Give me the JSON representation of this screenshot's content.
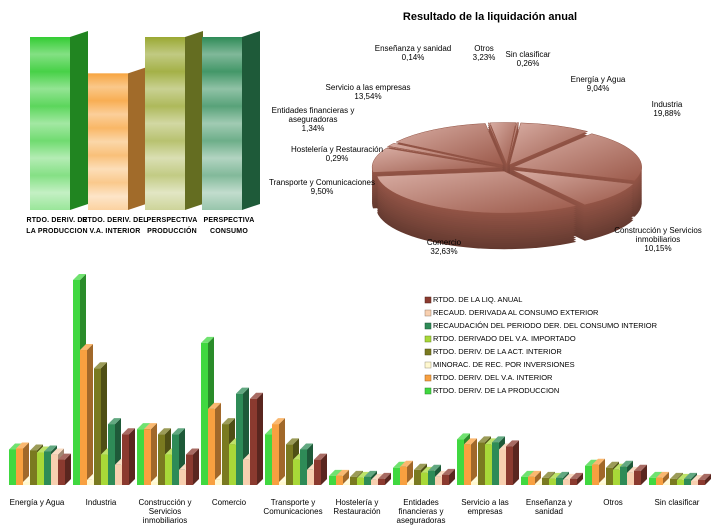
{
  "chart_data": [
    {
      "type": "bar",
      "categories": [
        "RTDO. DERIV. DE LA PRODUCCION",
        "RTDO. DERIV. DEL V.A. INTERIOR",
        "PERSPECTIVA PRODUCCIÓN",
        "PERSPECTIVA CONSUMO"
      ],
      "values": [
        100,
        79,
        100,
        100
      ],
      "colors": [
        "#33cc33",
        "#f7a540",
        "#9aa832",
        "#2e8b57"
      ]
    },
    {
      "type": "pie",
      "title": "Resultado de la liquidación anual",
      "categories": [
        "Energía y Agua",
        "Industria",
        "Construcción y Servicios inmobiliarios",
        "Comercio",
        "Transporte y Comunicaciones",
        "Hostelería y Restauración",
        "Entidades financieras y aseguradoras",
        "Servicio a las empresas",
        "Enseñanza y sanidad",
        "Otros",
        "Sin clasificar"
      ],
      "values": [
        9.04,
        19.88,
        10.15,
        32.63,
        9.5,
        0.29,
        1.34,
        13.54,
        0.14,
        3.23,
        0.26
      ],
      "value_labels": [
        "9,04%",
        "19,88%",
        "10,15%",
        "32,63%",
        "9,50%",
        "0,29%",
        "1,34%",
        "13,54%",
        "0,14%",
        "3,23%",
        "0,26%"
      ],
      "color": "#b86a58"
    },
    {
      "type": "bar",
      "categories": [
        "Energía y Agua",
        "Industria",
        "Construcción y Servicios inmobiliarios",
        "Comercio",
        "Transporte y Comunicaciones",
        "Hostelería y Restauración",
        "Entidades financieras y aseguradoras",
        "Servicio a las empresas",
        "Enseñanza y sanidad",
        "Otros",
        "Sin clasificar"
      ],
      "series": [
        {
          "name": "RTDO. DE LA LIQ. ANUAL",
          "color": "#8b3a2f",
          "values": [
            25,
            50,
            30,
            85,
            25,
            6,
            10,
            38,
            6,
            14,
            5
          ]
        },
        {
          "name": "RECAUD. DERIVADA AL CONSUMO EXTERIOR",
          "color": "#f8d0b0",
          "values": [
            30,
            20,
            15,
            25,
            15,
            5,
            8,
            35,
            5,
            12,
            4
          ]
        },
        {
          "name": "RECAUDACIÓN DEL PERIODO DER. DEL CONSUMO INTERIOR",
          "color": "#2e8b57",
          "values": [
            33,
            60,
            50,
            90,
            35,
            8,
            14,
            42,
            7,
            18,
            6
          ]
        },
        {
          "name": "RTDO. DERIVADO DEL V.A. IMPORTADO",
          "color": "#a8d838",
          "values": [
            32,
            30,
            30,
            40,
            25,
            7,
            12,
            40,
            6,
            15,
            5
          ]
        },
        {
          "name": "RTDO. DERIV. DE LA ACT. INTERIOR",
          "color": "#7a7a20",
          "values": [
            34,
            115,
            50,
            60,
            40,
            8,
            15,
            42,
            7,
            17,
            6
          ]
        },
        {
          "name": "MINORAC. DE REC. POR INVERSIONES",
          "color": "#fff8d0",
          "values": [
            3,
            5,
            3,
            5,
            3,
            1,
            2,
            3,
            1,
            2,
            1
          ]
        },
        {
          "name": "RTDO. DERIV. DEL V.A. INTERIOR",
          "color": "#f8a040",
          "values": [
            36,
            133,
            55,
            75,
            60,
            9,
            18,
            40,
            8,
            20,
            7
          ]
        },
        {
          "name": "RTDO. DERIV. DE LA PRODUCCION",
          "color": "#40d840",
          "values": [
            35,
            202,
            55,
            140,
            50,
            9,
            17,
            45,
            8,
            19,
            7
          ]
        }
      ]
    }
  ]
}
